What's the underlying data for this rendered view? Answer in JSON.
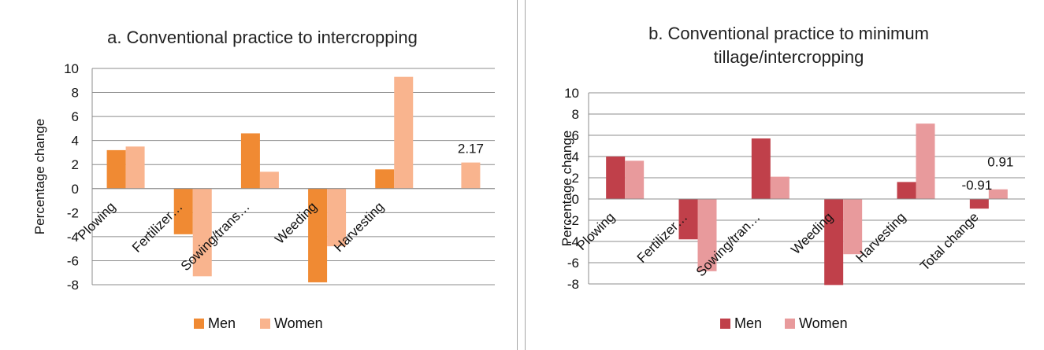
{
  "chart_data": [
    {
      "type": "bar",
      "title": "a. Conventional practice to intercropping",
      "ylabel": "Percentage change",
      "xlabel": "",
      "ylim": [
        -8,
        10
      ],
      "yticks": [
        "10",
        "8",
        "6",
        "4",
        "2",
        "0",
        "-2",
        "-4",
        "-6",
        "-8"
      ],
      "grid": true,
      "legend_position": "bottom",
      "categories": [
        "Plowing",
        "Fertilizer…",
        "Sowing/trans…",
        "Weeding",
        "Harvesting",
        ""
      ],
      "series": [
        {
          "name": "Men",
          "color": "#f08a33",
          "values": [
            3.2,
            -3.8,
            4.6,
            -7.8,
            1.6,
            null
          ]
        },
        {
          "name": "Women",
          "color": "#f9b48e",
          "values": [
            3.5,
            -7.3,
            1.4,
            -4.8,
            9.3,
            2.17
          ]
        }
      ],
      "data_labels": [
        {
          "series": 1,
          "index": 5,
          "text": "2.17"
        }
      ]
    },
    {
      "type": "bar",
      "title": "b. Conventional practice to minimum tillage/intercropping",
      "title_lines": [
        "b. Conventional practice to minimum",
        "tillage/intercropping"
      ],
      "ylabel": "Percentage change",
      "xlabel": "",
      "ylim": [
        -8,
        10
      ],
      "yticks": [
        "10",
        "8",
        "6",
        "4",
        "2",
        "0",
        "-2",
        "-4",
        "-6",
        "-8"
      ],
      "grid": true,
      "legend_position": "bottom",
      "categories": [
        "Plowing",
        "Fertilizer…",
        "Sowing/tran…",
        "Weeding",
        "Harvesting",
        "Total change"
      ],
      "series": [
        {
          "name": "Men",
          "color": "#c0404a",
          "values": [
            4.0,
            -3.8,
            5.7,
            -8.1,
            1.6,
            -0.91
          ]
        },
        {
          "name": "Women",
          "color": "#e89a9c",
          "values": [
            3.6,
            -6.8,
            2.1,
            -5.2,
            7.1,
            0.91
          ]
        }
      ],
      "data_labels": [
        {
          "series": 0,
          "index": 5,
          "text": "-0.91"
        },
        {
          "series": 1,
          "index": 5,
          "text": "0.91"
        }
      ]
    }
  ]
}
